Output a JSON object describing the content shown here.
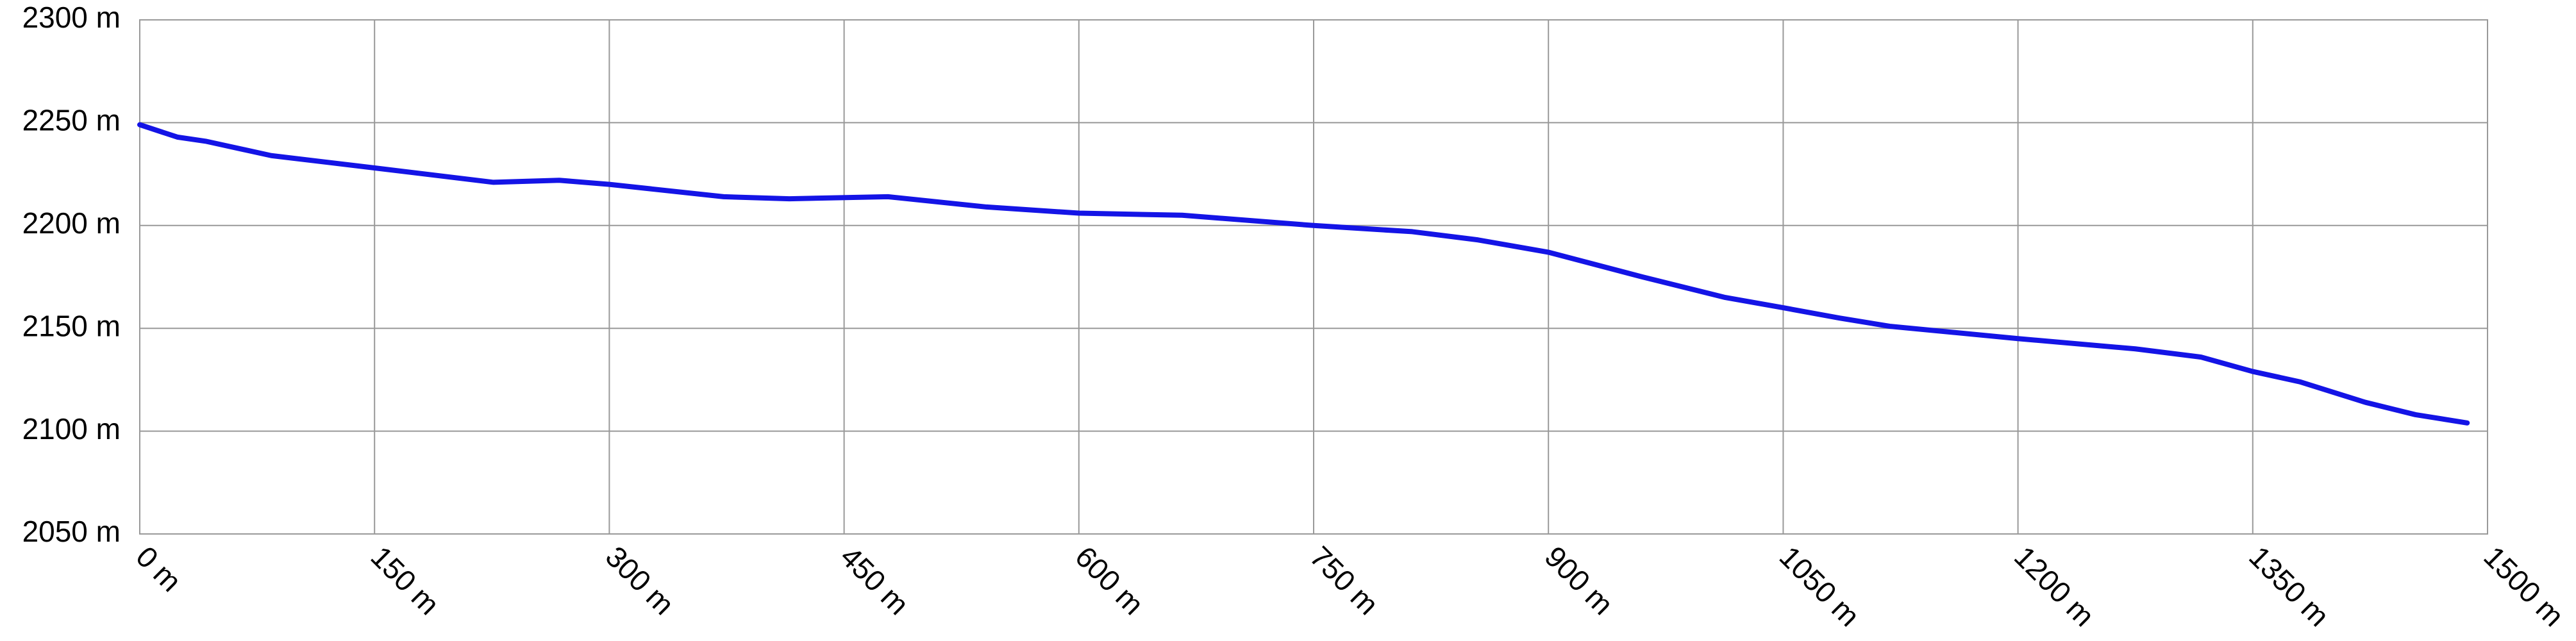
{
  "chart_data": {
    "type": "line",
    "x": [
      0,
      24,
      42,
      84,
      150,
      226,
      268,
      300,
      373,
      415,
      478,
      541,
      600,
      666,
      750,
      813,
      855,
      900,
      960,
      1013,
      1050,
      1086,
      1118,
      1200,
      1275,
      1317,
      1350,
      1380,
      1422,
      1454,
      1487
    ],
    "series": [
      {
        "color": "#1414e6",
        "values": [
          2249,
          2243,
          2241,
          2234,
          2228,
          2221,
          2222,
          2220,
          2214,
          2213,
          2214,
          2209,
          2206,
          2205,
          2200,
          2197,
          2193,
          2187,
          2175,
          2165,
          2160,
          2155,
          2151,
          2145,
          2140,
          2136,
          2129,
          2124,
          2114,
          2108,
          2104
        ]
      }
    ],
    "xlim": [
      0,
      1500
    ],
    "xticks": [
      {
        "value": 0,
        "label": "0 m"
      },
      {
        "value": 150,
        "label": "150 m"
      },
      {
        "value": 300,
        "label": "300 m"
      },
      {
        "value": 450,
        "label": "450 m"
      },
      {
        "value": 600,
        "label": "600 m"
      },
      {
        "value": 750,
        "label": "750 m"
      },
      {
        "value": 900,
        "label": "900 m"
      },
      {
        "value": 1050,
        "label": "1050 m"
      },
      {
        "value": 1200,
        "label": "1200 m"
      },
      {
        "value": 1350,
        "label": "1350 m"
      },
      {
        "value": 1500,
        "label": "1500 m"
      }
    ],
    "ylim": [
      2050,
      2300
    ],
    "yticks": [
      {
        "value": 2050,
        "label": "2050 m"
      },
      {
        "value": 2100,
        "label": "2100 m"
      },
      {
        "value": 2150,
        "label": "2150 m"
      },
      {
        "value": 2200,
        "label": "2200 m"
      },
      {
        "value": 2250,
        "label": "2250 m"
      },
      {
        "value": 2300,
        "label": "2300 m"
      }
    ],
    "grid": true
  }
}
